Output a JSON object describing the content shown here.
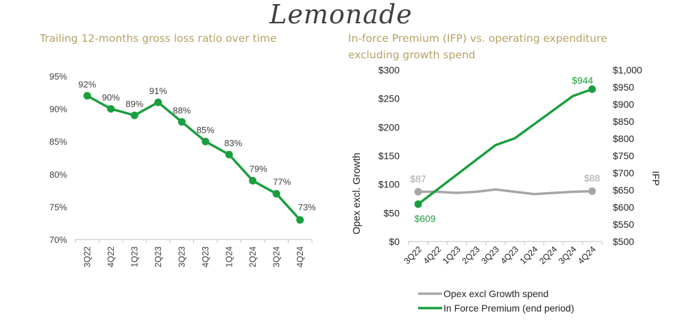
{
  "brand": "Lemonade",
  "colors": {
    "green": "#1a9e3e",
    "gray": "#a6a6a6",
    "title": "#b8a064",
    "axis": "#404040"
  },
  "chart_data": [
    {
      "type": "line",
      "title": "Trailing 12-months gross loss ratio over time",
      "categories": [
        "3Q22",
        "4Q22",
        "1Q23",
        "2Q23",
        "3Q23",
        "4Q23",
        "1Q24",
        "2Q24",
        "3Q24",
        "4Q24"
      ],
      "values": [
        92,
        90,
        89,
        91,
        88,
        85,
        83,
        79,
        77,
        73
      ],
      "data_labels": [
        "92%",
        "90%",
        "89%",
        "91%",
        "88%",
        "85%",
        "83%",
        "79%",
        "77%",
        "73%"
      ],
      "y_ticks": [
        "95%",
        "90%",
        "85%",
        "80%",
        "75%",
        "70%"
      ],
      "ylim": [
        70,
        95
      ],
      "grid": false
    },
    {
      "type": "line",
      "title": "In-force Premium (IFP) vs. operating expenditure excluding growth spend",
      "categories": [
        "3Q22",
        "4Q22",
        "1Q23",
        "2Q23",
        "3Q23",
        "4Q23",
        "1Q24",
        "2Q24",
        "3Q24",
        "4Q24"
      ],
      "ylabel": "Opex excl. Growth",
      "y2label": "IFP",
      "ylim": [
        0,
        300
      ],
      "y2lim": [
        500,
        1000
      ],
      "y_ticks": [
        "$300",
        "$250",
        "$200",
        "$150",
        "$100",
        "$50",
        "$0"
      ],
      "y2_ticks": [
        "$1,000",
        "$950",
        "$900",
        "$850",
        "$800",
        "$750",
        "$700",
        "$650",
        "$600",
        "$550",
        "$500"
      ],
      "series": [
        {
          "name": "Opex excl Growth spend",
          "axis": "left",
          "values": [
            87,
            87,
            85,
            87,
            91,
            87,
            83,
            85,
            87,
            88
          ],
          "labels": {
            "first": "$87",
            "last": "$88"
          }
        },
        {
          "name": "In Force Premium (end period)",
          "axis": "right",
          "values": [
            609,
            652,
            695,
            738,
            781,
            801,
            842,
            883,
            924,
            944
          ],
          "labels": {
            "first": "$609",
            "last": "$944"
          }
        }
      ],
      "legend": "bottom"
    }
  ]
}
